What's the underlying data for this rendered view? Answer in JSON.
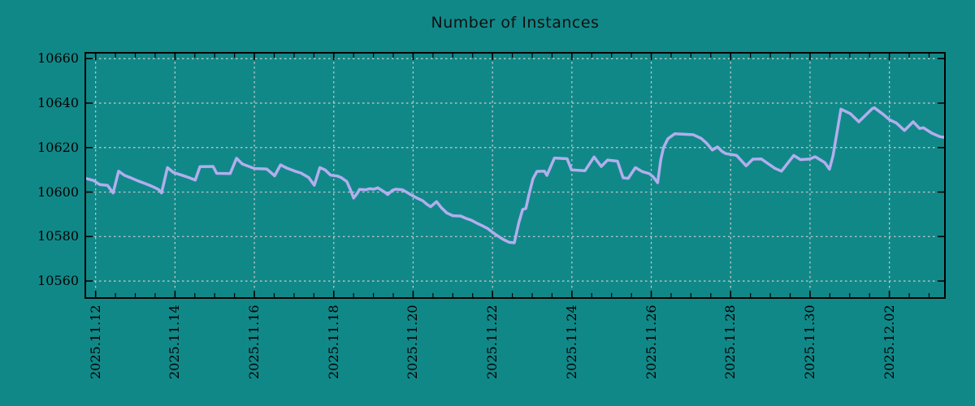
{
  "title": "Number of Instances",
  "colors": {
    "background": "#118888",
    "line": "#b2aeee",
    "grid": "#cccccc",
    "axis": "#000000",
    "text": "#000000"
  },
  "chart_data": {
    "type": "line",
    "title": "Number of Instances",
    "xlabel": "",
    "ylabel": "",
    "legend": "none",
    "grid": true,
    "x_unit": "days since 2025.11.12",
    "xlim": [
      -0.28,
      21.42
    ],
    "ylim": [
      10552,
      10663
    ],
    "y_ticks": [
      10560,
      10580,
      10600,
      10620,
      10640,
      10660
    ],
    "x_tick_days": [
      0,
      2,
      4,
      6,
      8,
      10,
      12,
      14,
      16,
      18,
      20
    ],
    "x_tick_labels": [
      "2025.11.12",
      "2025.11.14",
      "2025.11.16",
      "2025.11.18",
      "2025.11.20",
      "2025.11.22",
      "2025.11.24",
      "2025.11.26",
      "2025.11.28",
      "2025.11.30",
      "2025.12.02"
    ],
    "minor_x_tick_step_days": 0.5,
    "x_days": [
      -0.28,
      -0.05,
      0.1,
      0.3,
      0.44,
      0.58,
      0.73,
      0.9,
      1.07,
      1.24,
      1.38,
      1.48,
      1.59,
      1.66,
      1.81,
      1.96,
      2.17,
      2.37,
      2.51,
      2.63,
      2.96,
      3.05,
      3.39,
      3.55,
      3.7,
      4.0,
      4.31,
      4.41,
      4.51,
      4.66,
      4.82,
      5.02,
      5.17,
      5.37,
      5.51,
      5.65,
      5.78,
      5.92,
      6.09,
      6.19,
      6.33,
      6.43,
      6.5,
      6.59,
      6.65,
      6.8,
      6.9,
      7.01,
      7.11,
      7.28,
      7.36,
      7.48,
      7.56,
      7.73,
      7.83,
      7.97,
      8.1,
      8.24,
      8.34,
      8.44,
      8.59,
      8.71,
      8.85,
      9.0,
      9.2,
      9.33,
      9.47,
      9.61,
      9.74,
      9.88,
      10.0,
      10.14,
      10.28,
      10.42,
      10.55,
      10.66,
      10.76,
      10.84,
      10.92,
      11.02,
      11.12,
      11.31,
      11.37,
      11.56,
      11.88,
      11.99,
      12.33,
      12.56,
      12.74,
      12.9,
      13.15,
      13.29,
      13.42,
      13.6,
      13.77,
      13.95,
      14.05,
      14.16,
      14.24,
      14.31,
      14.42,
      14.59,
      15.06,
      15.26,
      15.4,
      15.54,
      15.67,
      15.78,
      15.88,
      16.15,
      16.39,
      16.56,
      16.77,
      17.11,
      17.28,
      17.59,
      17.76,
      18.0,
      18.13,
      18.37,
      18.49,
      18.58,
      18.78,
      19.02,
      19.23,
      19.57,
      19.62,
      19.84,
      20.0,
      20.18,
      20.38,
      20.6,
      20.76,
      20.86,
      21.07,
      21.27,
      21.42
    ],
    "values": [
      10606.3,
      10605.2,
      10603.4,
      10603.0,
      10599.6,
      10609.4,
      10607.5,
      10606.3,
      10605.0,
      10603.9,
      10602.9,
      10602.1,
      10601.1,
      10599.6,
      10611.0,
      10608.8,
      10607.6,
      10606.4,
      10605.4,
      10611.4,
      10611.5,
      10608.4,
      10608.3,
      10615.2,
      10612.6,
      10610.6,
      10610.4,
      10608.9,
      10607.3,
      10612.2,
      10610.8,
      10609.4,
      10608.6,
      10606.5,
      10603.1,
      10611.0,
      10610.0,
      10607.6,
      10607.2,
      10606.5,
      10604.7,
      10600.6,
      10597.3,
      10599.4,
      10601.2,
      10601.0,
      10601.5,
      10601.3,
      10601.9,
      10600.0,
      10598.9,
      10600.8,
      10601.3,
      10601.0,
      10600.0,
      10598.5,
      10597.3,
      10596.1,
      10594.6,
      10593.4,
      10595.7,
      10593.0,
      10590.6,
      10589.4,
      10589.2,
      10588.2,
      10587.3,
      10586.0,
      10584.9,
      10583.6,
      10581.9,
      10580.2,
      10578.6,
      10577.4,
      10577.2,
      10586.0,
      10592.2,
      10592.6,
      10599.0,
      10606.0,
      10609.3,
      10609.4,
      10607.5,
      10615.3,
      10615.0,
      10610.0,
      10609.6,
      10615.8,
      10611.5,
      10614.4,
      10613.9,
      10606.4,
      10606.2,
      10611.0,
      10609.2,
      10608.3,
      10606.8,
      10604.2,
      10614.6,
      10620.1,
      10624.0,
      10626.2,
      10625.8,
      10624.1,
      10621.9,
      10618.9,
      10620.3,
      10618.3,
      10617.3,
      10616.5,
      10611.8,
      10614.8,
      10614.9,
      10610.7,
      10609.4,
      10616.5,
      10614.6,
      10614.9,
      10615.9,
      10613.3,
      10610.3,
      10616.4,
      10637.3,
      10635.2,
      10631.6,
      10637.5,
      10637.9,
      10635.0,
      10632.6,
      10631.0,
      10627.7,
      10631.6,
      10628.6,
      10628.9,
      10626.5,
      10624.9,
      10624.5
    ]
  }
}
